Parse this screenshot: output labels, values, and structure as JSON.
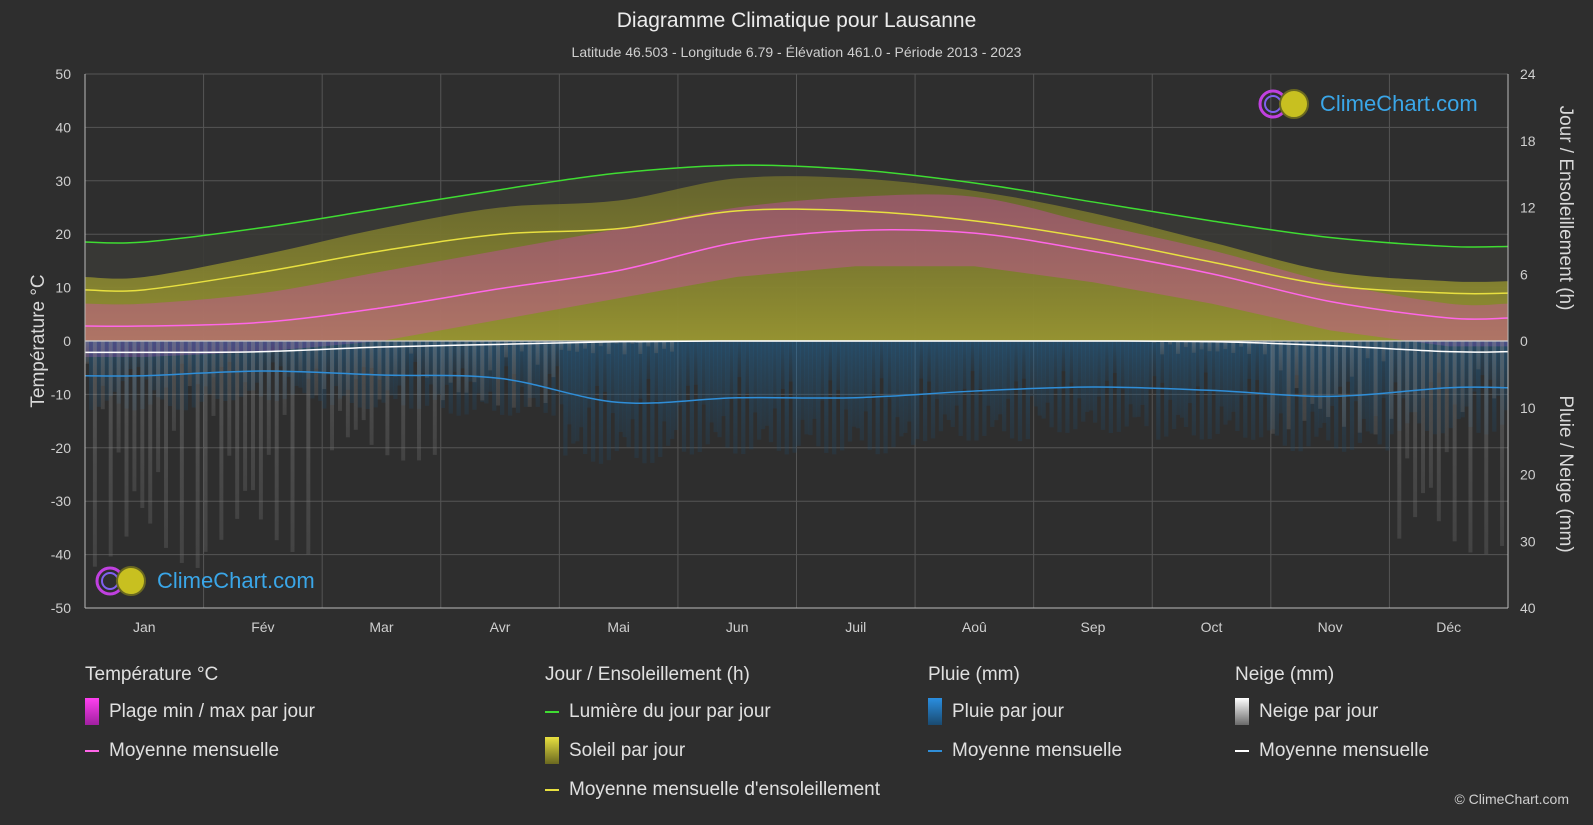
{
  "header": {
    "title": "Diagramme Climatique pour Lausanne",
    "subtitle": "Latitude 46.503 - Longitude 6.79 - Élévation 461.0 - Période 2013 - 2023"
  },
  "brand": {
    "logo_text": "ClimeChart.com",
    "copyright": "© ClimeChart.com"
  },
  "colors": {
    "background": "#2e2e2e",
    "daylight": "#3fdc32",
    "sunshine_mean": "#e8e040",
    "temp_mean": "#ff66e8",
    "rain_mean": "#2f8ed8",
    "snow_mean": "#ffffff",
    "temp_range": "#e040c8",
    "sunshine_fill": "#b8b430",
    "rain_fill": "#1f6ea8",
    "snow_fill": "#9a9a9a",
    "logo_text": "#3aa6e8"
  },
  "chart_data": {
    "type": "line",
    "categories": [
      "Jan",
      "Fév",
      "Mar",
      "Avr",
      "Mai",
      "Jun",
      "Juil",
      "Aoû",
      "Sep",
      "Oct",
      "Nov",
      "Déc"
    ],
    "axes": {
      "left": {
        "label": "Température °C",
        "min": -50,
        "max": 50,
        "ticks": [
          50,
          40,
          30,
          20,
          10,
          0,
          -10,
          -20,
          -30,
          -40,
          -50
        ]
      },
      "right_top": {
        "label": "Jour / Ensoleillement (h)",
        "min": 0,
        "max": 24,
        "ticks": [
          24,
          18,
          12,
          6,
          0
        ]
      },
      "right_bottom": {
        "label": "Pluie / Neige (mm)",
        "min": 0,
        "max": 40,
        "ticks": [
          0,
          10,
          20,
          30,
          40
        ]
      }
    },
    "grid": true,
    "series": [
      {
        "name": "Lumière du jour par jour",
        "axis": "hours",
        "values": [
          8.9,
          10.2,
          11.9,
          13.6,
          15.1,
          15.8,
          15.4,
          14.2,
          12.5,
          10.8,
          9.3,
          8.5
        ]
      },
      {
        "name": "Moyenne mensuelle d'ensoleillement",
        "axis": "hours",
        "values": [
          4.6,
          6.2,
          8.1,
          9.6,
          10.1,
          11.7,
          11.7,
          10.8,
          9.2,
          7.1,
          5.0,
          4.3
        ]
      },
      {
        "name": "Moyenne mensuelle",
        "group": "Température °C",
        "axis": "temperature",
        "values": [
          2.8,
          3.5,
          6.2,
          9.8,
          13.2,
          18.5,
          20.7,
          20.2,
          16.8,
          12.6,
          7.4,
          4.3
        ]
      },
      {
        "name": "Moyenne mensuelle",
        "group": "Pluie (mm)",
        "axis": "precip",
        "values": [
          5.2,
          4.5,
          5.1,
          5.6,
          9.2,
          8.5,
          8.5,
          7.5,
          6.9,
          7.4,
          8.3,
          7.0
        ]
      },
      {
        "name": "Moyenne mensuelle",
        "group": "Neige (mm)",
        "axis": "precip",
        "values": [
          1.7,
          1.6,
          0.9,
          0.5,
          0.1,
          0.0,
          0.0,
          0.0,
          0.0,
          0.1,
          0.7,
          1.6
        ]
      }
    ],
    "temp_range_approx": {
      "min": [
        -3,
        -2,
        0,
        4,
        8,
        12,
        14,
        14,
        11,
        7,
        2,
        -1
      ],
      "max": [
        7,
        9,
        13,
        17,
        21,
        25,
        27,
        27,
        22,
        17,
        11,
        7
      ]
    }
  },
  "legend": {
    "temperature": {
      "title": "Température °C",
      "items": [
        "Plage min / max par jour",
        "Moyenne mensuelle"
      ]
    },
    "sun": {
      "title": "Jour / Ensoleillement (h)",
      "items": [
        "Lumière du jour par jour",
        "Soleil par jour",
        "Moyenne mensuelle d'ensoleillement"
      ]
    },
    "rain": {
      "title": "Pluie (mm)",
      "items": [
        "Pluie par jour",
        "Moyenne mensuelle"
      ]
    },
    "snow": {
      "title": "Neige (mm)",
      "items": [
        "Neige par jour",
        "Moyenne mensuelle"
      ]
    }
  }
}
